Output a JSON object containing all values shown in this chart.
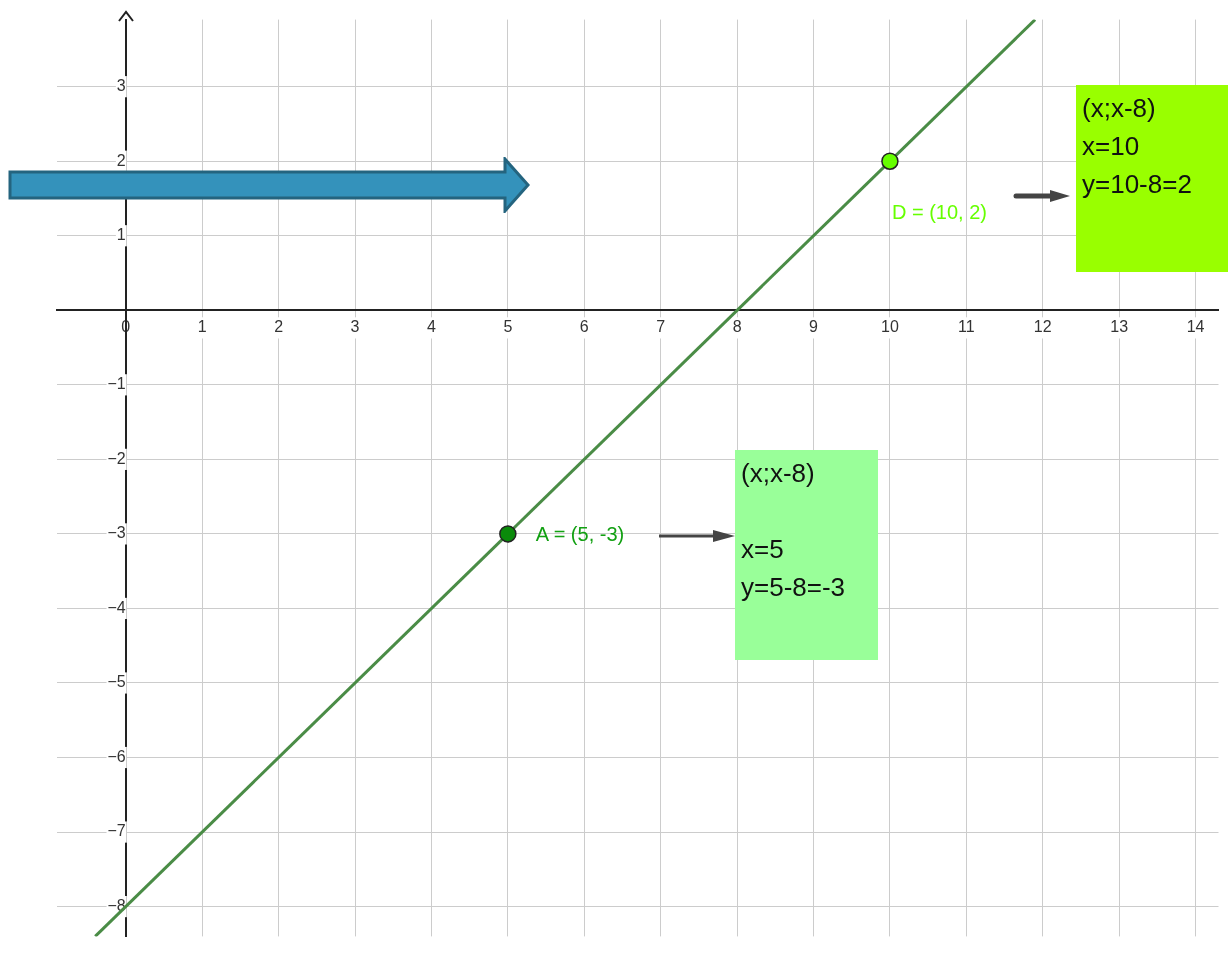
{
  "chart_data": {
    "type": "line",
    "xlim": [
      -0.9,
      14.3
    ],
    "ylim": [
      -8.4,
      3.9
    ],
    "xticks": [
      0,
      1,
      2,
      3,
      4,
      5,
      6,
      7,
      8,
      9,
      10,
      11,
      12,
      13,
      14
    ],
    "yticks": [
      -8,
      -7,
      -6,
      -5,
      -4,
      -3,
      -2,
      -1,
      1,
      2,
      3
    ],
    "grid": true,
    "legend": false,
    "series": [
      {
        "color": "#4a8c46",
        "marker": "none",
        "x": [
          -0.4,
          11.9
        ],
        "values": [
          -8.4,
          3.9
        ]
      },
      {
        "type": "scatter",
        "marker": "circle",
        "color": "#0a8a0a",
        "x": [
          5
        ],
        "values": [
          -3
        ]
      },
      {
        "type": "scatter",
        "marker": "circle",
        "color": "#66ff00",
        "x": [
          10
        ],
        "values": [
          2
        ]
      }
    ],
    "annotations": [
      {
        "text": "A = (5, -3)",
        "x": 5,
        "y": -3
      },
      {
        "text": "D = (10, 2)",
        "x": 10,
        "y": 2
      },
      "(x;x-8)\n\nx=5\ny=5-8=-3",
      "(x;x-8)\nx=10\ny=10-8=2"
    ]
  }
}
